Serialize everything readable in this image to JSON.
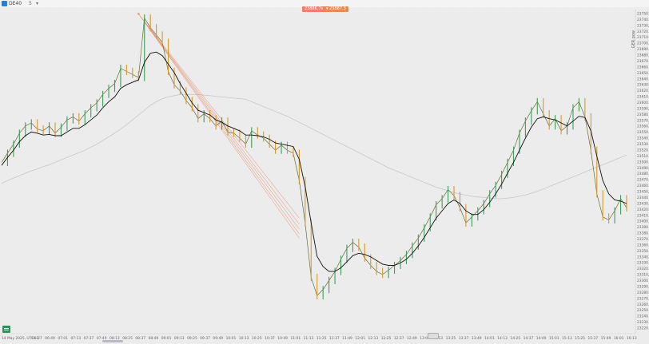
{
  "header": {
    "symbol": "DE40",
    "timeframe": "5",
    "dropdown": "▾",
    "sell_label": "23886.7s ▾",
    "buy_label": "▾ 23887.3"
  },
  "colors": {
    "price_line": "#6b6b3a",
    "bull": "#3c9e5a",
    "bear": "#d69a2c",
    "ma_fast": "#111111",
    "ma_slow": "#c8c8c8",
    "fib": "#e58a6a",
    "sell": "#ee7d6b",
    "buy": "#e68a55",
    "background": "#ececec"
  },
  "chart_data": {
    "type": "line",
    "ylabel": "GER pow",
    "y_ticks": [
      "23750.0",
      "23740.0",
      "23730.0",
      "23720.0",
      "23710.0",
      "23700.0",
      "23690.0",
      "23680.0",
      "23670.0",
      "23660.0",
      "23650.0",
      "23640.0",
      "23630.0",
      "23620.0",
      "23610.0",
      "23600.0",
      "23590.0",
      "23580.0",
      "23570.0",
      "23560.0",
      "23550.0",
      "23540.0",
      "23530.0",
      "23520.0",
      "23510.0",
      "23500.0",
      "23490.0",
      "23480.0",
      "23470.0",
      "23460.0",
      "23450.0",
      "23440.0",
      "23430.0",
      "23420.0",
      "23410.0",
      "23400.0",
      "23390.0",
      "23380.0",
      "23370.0",
      "23360.0",
      "23350.0",
      "23340.0",
      "23330.0",
      "23320.0",
      "23310.0",
      "23300.0",
      "23290.0",
      "23280.0",
      "23270.0",
      "23260.0",
      "23250.0",
      "23240.0",
      "23230.0",
      "23220.0"
    ],
    "x_ticks": [
      "14 May 2025, UTC+2",
      "06:27",
      "06:49",
      "07:01",
      "07:13",
      "07:37",
      "07:49",
      "08:13",
      "08:25",
      "08:37",
      "08:49",
      "09:01",
      "09:13",
      "09:25",
      "09:37",
      "09:49",
      "10:01",
      "10:13",
      "10:25",
      "10:37",
      "10:49",
      "11:01",
      "11:13",
      "11:25",
      "11:37",
      "11:49",
      "12:01",
      "12:13",
      "12:25",
      "12:37",
      "12:49",
      "13:01",
      "13:13",
      "13:25",
      "13:37",
      "13:49",
      "14:01",
      "14:13",
      "14:25",
      "14:37",
      "14:49",
      "15:01",
      "15:13",
      "15:25",
      "15:37",
      "15:49",
      "16:01",
      "16:13"
    ],
    "ylim": [
      23220,
      23752
    ],
    "price": [
      23500,
      23515,
      23530,
      23548,
      23560,
      23565,
      23555,
      23552,
      23560,
      23548,
      23558,
      23570,
      23575,
      23568,
      23580,
      23590,
      23598,
      23612,
      23622,
      23630,
      23655,
      23650,
      23645,
      23640,
      23738,
      23722,
      23710,
      23698,
      23650,
      23628,
      23618,
      23602,
      23590,
      23572,
      23580,
      23572,
      23560,
      23568,
      23550,
      23548,
      23540,
      23530,
      23552,
      23545,
      23540,
      23530,
      23520,
      23528,
      23520,
      23515,
      23470,
      23400,
      23310,
      23280,
      23290,
      23305,
      23320,
      23340,
      23358,
      23368,
      23360,
      23342,
      23330,
      23320,
      23315,
      23322,
      23330,
      23338,
      23348,
      23362,
      23375,
      23392,
      23410,
      23430,
      23440,
      23455,
      23445,
      23425,
      23400,
      23410,
      23420,
      23432,
      23448,
      23462,
      23480,
      23500,
      23520,
      23548,
      23568,
      23585,
      23600,
      23580,
      23560,
      23572,
      23552,
      23560,
      23590,
      23600,
      23575,
      23520,
      23448,
      23410,
      23405,
      23420,
      23440,
      23425
    ],
    "ma_fast": [
      23495,
      23508,
      23520,
      23534,
      23544,
      23550,
      23548,
      23545,
      23546,
      23544,
      23544,
      23550,
      23556,
      23556,
      23562,
      23570,
      23578,
      23590,
      23600,
      23608,
      23622,
      23628,
      23632,
      23636,
      23665,
      23680,
      23682,
      23676,
      23662,
      23648,
      23630,
      23614,
      23598,
      23586,
      23582,
      23578,
      23570,
      23566,
      23560,
      23556,
      23552,
      23545,
      23545,
      23544,
      23542,
      23538,
      23532,
      23530,
      23528,
      23526,
      23505,
      23460,
      23400,
      23345,
      23328,
      23320,
      23320,
      23326,
      23336,
      23346,
      23350,
      23348,
      23344,
      23338,
      23332,
      23330,
      23330,
      23334,
      23340,
      23350,
      23362,
      23376,
      23392,
      23408,
      23420,
      23432,
      23438,
      23432,
      23420,
      23414,
      23414,
      23422,
      23434,
      23448,
      23464,
      23482,
      23500,
      23520,
      23540,
      23558,
      23572,
      23575,
      23572,
      23570,
      23565,
      23560,
      23568,
      23576,
      23574,
      23552,
      23510,
      23470,
      23448,
      23438,
      23436,
      23432
    ],
    "ma_slow": [
      23465,
      23470,
      23474,
      23478,
      23482,
      23486,
      23489,
      23493,
      23496,
      23500,
      23504,
      23508,
      23512,
      23516,
      23520,
      23525,
      23530,
      23536,
      23542,
      23548,
      23555,
      23562,
      23570,
      23578,
      23586,
      23594,
      23600,
      23605,
      23608,
      23610,
      23612,
      23612,
      23612,
      23612,
      23611,
      23610,
      23609,
      23608,
      23607,
      23606,
      23605,
      23604,
      23600,
      23596,
      23592,
      23588,
      23584,
      23580,
      23576,
      23571,
      23566,
      23561,
      23556,
      23551,
      23546,
      23541,
      23536,
      23531,
      23526,
      23521,
      23516,
      23511,
      23506,
      23501,
      23496,
      23491,
      23487,
      23483,
      23479,
      23475,
      23471,
      23467,
      23463,
      23459,
      23456,
      23453,
      23450,
      23448,
      23446,
      23444,
      23443,
      23442,
      23441,
      23440,
      23440,
      23441,
      23442,
      23444,
      23446,
      23449,
      23452,
      23456,
      23460,
      23464,
      23468,
      23472,
      23476,
      23480,
      23484,
      23488,
      23492,
      23496,
      23500,
      23504,
      23508,
      23512
    ],
    "fib_fan": {
      "anchor": {
        "t": 23,
        "y": 23745
      },
      "targets": [
        {
          "t": 50,
          "y": 23375
        },
        {
          "t": 50,
          "y": 23382
        },
        {
          "t": 50,
          "y": 23390
        },
        {
          "t": 50,
          "y": 23398
        },
        {
          "t": 50,
          "y": 23408
        }
      ]
    }
  }
}
